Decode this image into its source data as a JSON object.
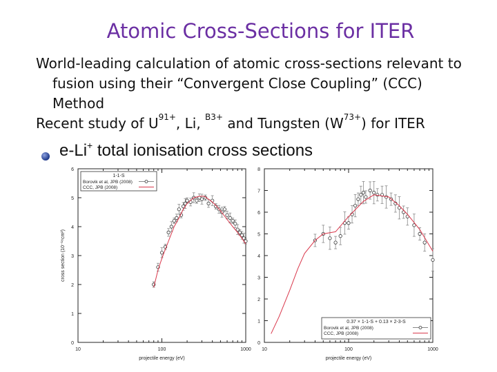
{
  "slide": {
    "title": "Atomic Cross-Sections for ITER",
    "para1": "World-leading calculation of atomic cross-sections relevant to fusion using their “Convergent Close Coupling” (CCC) Method",
    "para2_pre": "Recent study of U",
    "para2_sup1": "91+",
    "para2_mid1": ", Li, ",
    "para2_sup2": "B3+",
    "para2_mid2": " and Tungsten (W",
    "para2_sup3": "73+",
    "para2_post": ") for ITER",
    "bullet_pre": "e-Li",
    "bullet_sup": "+",
    "bullet_post": " total ionisation cross sections"
  },
  "chart_data": [
    {
      "type": "scatter",
      "title": "",
      "xlabel": "projectile energy (eV)",
      "ylabel": "cross section (10⁻¹⁸cm²)",
      "xscale": "log",
      "xlim": [
        10,
        1000
      ],
      "ylim": [
        0,
        6
      ],
      "xticks": [
        10,
        100,
        1000
      ],
      "yticks": [
        0,
        1,
        2,
        3,
        4,
        5,
        6
      ],
      "legend_position": "top-left",
      "legend_title": "1-1-S",
      "series": [
        {
          "name": "Borovik et al, JPB (2008)",
          "marker": "circle",
          "color": "#333333",
          "x": [
            80,
            90,
            100,
            110,
            120,
            130,
            140,
            150,
            160,
            170,
            180,
            190,
            200,
            220,
            240,
            260,
            280,
            300,
            330,
            360,
            400,
            440,
            480,
            520,
            560,
            600,
            650,
            700,
            750,
            800,
            850,
            900,
            950,
            1000
          ],
          "y": [
            2.0,
            2.6,
            3.1,
            3.3,
            3.8,
            4.0,
            4.2,
            4.3,
            4.6,
            4.4,
            4.7,
            4.8,
            4.9,
            4.85,
            5.0,
            4.9,
            5.0,
            4.95,
            5.0,
            4.8,
            4.9,
            4.7,
            4.6,
            4.5,
            4.6,
            4.4,
            4.3,
            4.2,
            4.1,
            3.9,
            3.8,
            3.7,
            3.6,
            3.5
          ]
        },
        {
          "name": "CCC, JPB (2008)",
          "marker": "line",
          "color": "#d9374b",
          "x": [
            80,
            90,
            100,
            120,
            140,
            160,
            180,
            200,
            240,
            280,
            320,
            360,
            400,
            450,
            500,
            600,
            700,
            800,
            900,
            1000
          ],
          "y": [
            1.9,
            2.5,
            2.9,
            3.5,
            4.0,
            4.3,
            4.6,
            4.8,
            5.0,
            5.05,
            5.05,
            4.95,
            4.85,
            4.7,
            4.55,
            4.25,
            4.0,
            3.8,
            3.6,
            3.4
          ]
        }
      ]
    },
    {
      "type": "scatter",
      "title": "",
      "xlabel": "projectile energy (eV)",
      "ylabel": "",
      "xscale": "log",
      "xlim": [
        10,
        1000
      ],
      "ylim": [
        0,
        8
      ],
      "xticks": [
        10,
        100,
        1000
      ],
      "yticks": [
        0,
        1,
        2,
        3,
        4,
        5,
        6,
        7,
        8
      ],
      "legend_position": "bottom-right",
      "legend_title": "0.37 × 1-1-S + 0.13 × 2-3-S",
      "series": [
        {
          "name": "Borovik et al, JPB (2008)",
          "marker": "circle",
          "color": "#333333",
          "x": [
            40,
            50,
            60,
            70,
            80,
            90,
            100,
            110,
            120,
            130,
            140,
            150,
            160,
            180,
            200,
            220,
            250,
            280,
            320,
            360,
            400,
            450,
            500,
            600,
            700,
            800,
            1000
          ],
          "y": [
            4.7,
            5.0,
            4.8,
            4.6,
            4.9,
            5.5,
            5.5,
            5.9,
            6.3,
            6.6,
            6.8,
            6.9,
            6.7,
            7.0,
            6.9,
            6.8,
            6.8,
            6.7,
            6.6,
            6.4,
            6.2,
            6.0,
            5.8,
            5.4,
            5.0,
            4.6,
            3.8
          ]
        },
        {
          "name": "CCC, JPB (2008)",
          "marker": "line",
          "color": "#d9374b",
          "x": [
            12,
            15,
            20,
            25,
            30,
            40,
            50,
            70,
            100,
            150,
            200,
            300,
            400,
            500,
            700,
            1000
          ],
          "y": [
            0.4,
            1.2,
            2.4,
            3.4,
            4.1,
            4.7,
            5.0,
            5.1,
            5.8,
            6.5,
            6.8,
            6.7,
            6.3,
            5.9,
            5.2,
            4.2
          ]
        }
      ]
    }
  ]
}
